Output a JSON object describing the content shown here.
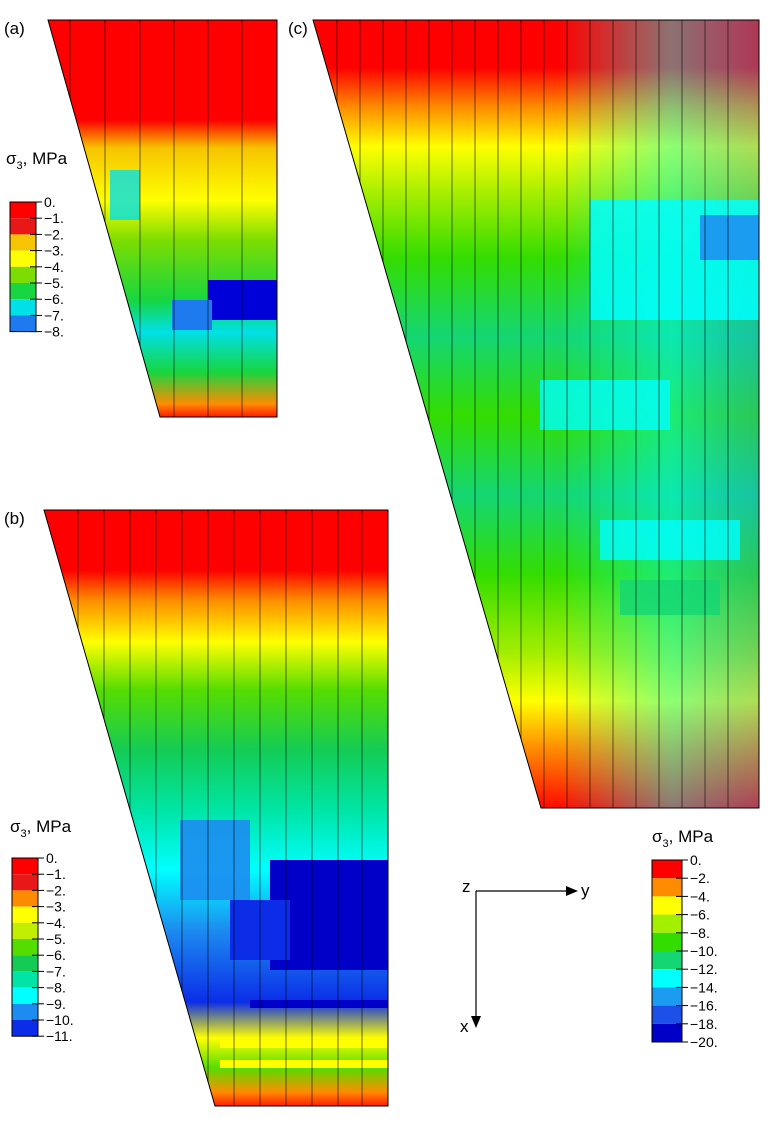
{
  "panels": {
    "a": {
      "label": "(a)"
    },
    "b": {
      "label": "(b)"
    },
    "c": {
      "label": "(c)"
    }
  },
  "legends": {
    "a": {
      "title_sigma": "σ",
      "title_sub": "3",
      "title_unit": ", MPa",
      "ticks": [
        "0.",
        "−1.",
        "−2.",
        "−3.",
        "−4.",
        "−5.",
        "−6.",
        "−7.",
        "−8."
      ],
      "colors": [
        "#ff0000",
        "#e81818",
        "#f6c400",
        "#ffff00",
        "#7ddd00",
        "#17d640",
        "#00e0e8",
        "#1d7bef",
        "#0000d8"
      ]
    },
    "b": {
      "title_sigma": "σ",
      "title_sub": "3",
      "title_unit": ", MPa",
      "ticks": [
        "0.",
        "−1.",
        "−2.",
        "−3.",
        "−4.",
        "−5.",
        "−6.",
        "−7.",
        "−8.",
        "−9.",
        "−10.",
        "−11."
      ],
      "colors": [
        "#ff0000",
        "#e81818",
        "#ff8c00",
        "#ffff00",
        "#c2ee00",
        "#56dd00",
        "#14cc55",
        "#00e5a5",
        "#00ffff",
        "#1c8cf0",
        "#0b2de8",
        "#0000c8"
      ]
    },
    "c": {
      "title_sigma": "σ",
      "title_sub": "3",
      "title_unit": ", MPa",
      "ticks": [
        "0.",
        "−2.",
        "−4.",
        "−6.",
        "−8.",
        "−10.",
        "−12.",
        "−14.",
        "−16.",
        "−18.",
        "−20."
      ],
      "colors": [
        "#ff0000",
        "#ff8c00",
        "#ffff00",
        "#a4ee00",
        "#34dd00",
        "#14d673",
        "#00ffff",
        "#1c9cf0",
        "#1c50e8",
        "#0000c8"
      ]
    }
  },
  "axes": {
    "z_label": "z",
    "y_label": "y",
    "x_label": "x"
  }
}
